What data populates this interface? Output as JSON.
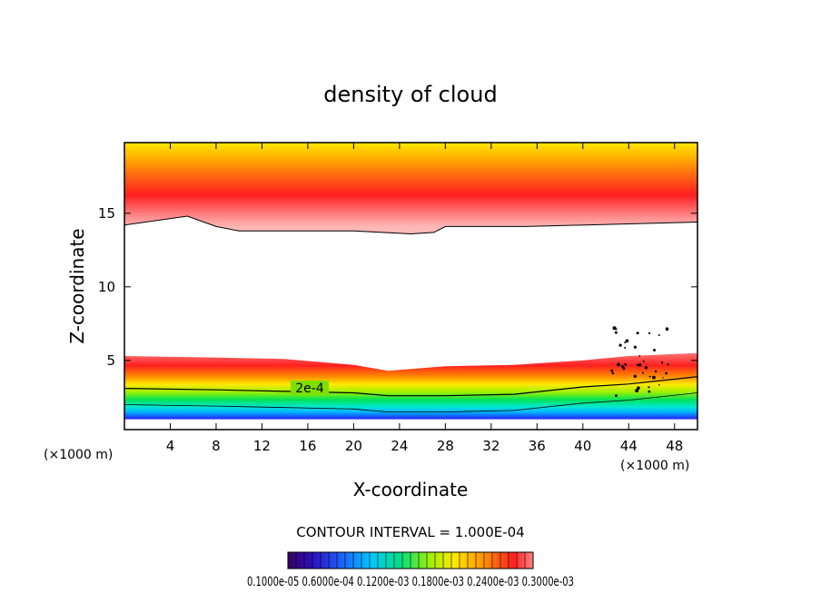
{
  "chart_data": {
    "type": "heatmap",
    "title": "density of cloud",
    "xlabel": "X-coordinate",
    "ylabel": "Z-coordinate",
    "x_unit_label": "(×1000 m)",
    "x_unit_label_right": "(×1000 m)",
    "xlim": [
      0,
      50
    ],
    "ylim": [
      0.3,
      19.8
    ],
    "x_ticks": [
      4,
      8,
      12,
      16,
      20,
      24,
      28,
      32,
      36,
      40,
      44,
      48
    ],
    "y_ticks": [
      5,
      10,
      15
    ],
    "x_tick_labels": [
      "4",
      "8",
      "12",
      "16",
      "20",
      "24",
      "28",
      "32",
      "36",
      "40",
      "44",
      "48"
    ],
    "y_tick_labels": [
      "5",
      "10",
      "15"
    ],
    "contour_label": "2e-4",
    "contour_interval_text": "CONTOUR INTERVAL = 1.000E-04",
    "colorbar_labels": "0.1000e-05 0.6000e-04 0.1200e-03 0.1800e-03 0.2400e-03 0.3000e-03",
    "upper_layer": {
      "x": [
        0,
        5.5,
        8,
        10,
        20,
        25,
        27,
        28,
        35,
        50
      ],
      "bottom": [
        14.2,
        14.8,
        14.1,
        13.8,
        13.8,
        13.6,
        13.7,
        14.1,
        14.1,
        14.4
      ],
      "top": 19.8,
      "peak_z": 16.1
    },
    "lower_layer": {
      "x": [
        0,
        8,
        14,
        20,
        23,
        28,
        34,
        40,
        44,
        50
      ],
      "top": [
        5.3,
        5.2,
        5.1,
        4.7,
        4.3,
        4.6,
        4.7,
        5.0,
        5.3,
        5.5
      ],
      "bottom": 1.0,
      "contour_2e4": [
        3.1,
        3.0,
        2.9,
        2.8,
        2.6,
        2.6,
        2.7,
        3.2,
        3.4,
        3.9
      ]
    },
    "colors": {
      "purple": "#5a0aa0",
      "blue": "#1e3cff",
      "cyan": "#00d8ff",
      "green": "#00e25a",
      "yellow": "#ffe800",
      "orange": "#ff9a00",
      "red": "#ff1c1c",
      "pink": "#ffb0b0"
    }
  }
}
